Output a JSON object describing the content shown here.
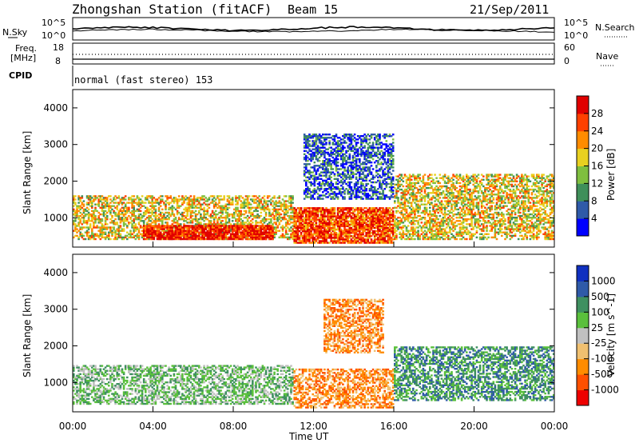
{
  "header": {
    "station": "Zhongshan Station (fitACF)",
    "beam": "Beam 15",
    "date": "21/Sep/2011"
  },
  "noise_panel": {
    "left_label": "N.Sky",
    "right_label": "N.Search",
    "left_ticks": [
      "10^5",
      "10^0"
    ],
    "right_ticks": [
      "10^5",
      "10^0"
    ]
  },
  "freq_panel": {
    "left_label_1": "Freq.",
    "left_label_2": "[MHz]",
    "right_label": "Nave",
    "left_ticks": [
      "18",
      "8"
    ],
    "right_ticks": [
      "60",
      "0"
    ]
  },
  "cpid": {
    "label": "CPID",
    "text": "normal (fast stereo) 153"
  },
  "colors": {
    "power": [
      "#0000ff",
      "#2f5aa8",
      "#3f8f5a",
      "#7fbf3f",
      "#e8d020",
      "#ff8c00",
      "#ff4000",
      "#e00000"
    ],
    "velocity": [
      "#ee0000",
      "#ff5000",
      "#ff8c00",
      "#f0c070",
      "#c0c0c0",
      "#5ac03c",
      "#3f9060",
      "#2f5aa8",
      "#1030c0"
    ]
  },
  "chart_data": [
    {
      "type": "heatmap",
      "name": "power",
      "ylabel": "Slant Range [km]",
      "yticks": [
        "4000",
        "3000",
        "2000",
        "1000"
      ],
      "ylim": [
        200,
        4500
      ],
      "xlim": [
        "00:00",
        "24:00"
      ],
      "colorbar_label": "Power [dB]",
      "colorbar_ticks": [
        "28",
        "24",
        "20",
        "16",
        "12",
        "8",
        "4"
      ],
      "colorbar_range": [
        0,
        32
      ],
      "echo_regions": [
        {
          "t": [
            0.0,
            11.0
          ],
          "range_km": [
            400,
            1600
          ],
          "dominant_db": 16
        },
        {
          "t": [
            3.5,
            10.0
          ],
          "range_km": [
            400,
            800
          ],
          "dominant_db": 28
        },
        {
          "t": [
            11.0,
            16.0
          ],
          "range_km": [
            300,
            1300
          ],
          "dominant_db": 24
        },
        {
          "t": [
            16.0,
            24.0
          ],
          "range_km": [
            400,
            2200
          ],
          "dominant_db": 16
        },
        {
          "t": [
            11.5,
            16.0
          ],
          "range_km": [
            1500,
            3300
          ],
          "dominant_db": 6
        }
      ]
    },
    {
      "type": "heatmap",
      "name": "velocity",
      "ylabel": "Slant Range [km]",
      "yticks": [
        "4000",
        "3000",
        "2000",
        "1000"
      ],
      "ylim": [
        200,
        4500
      ],
      "xlabel": "Time UT",
      "xticks": [
        "00:00",
        "04:00",
        "08:00",
        "12:00",
        "16:00",
        "20:00",
        "00:00"
      ],
      "xlim": [
        "00:00",
        "24:00"
      ],
      "colorbar_label": "Velocity [m s^-1]",
      "colorbar_ticks": [
        "1000",
        "500",
        "100",
        "25",
        "-25",
        "-100",
        "-500",
        "-1000"
      ],
      "echo_regions": [
        {
          "t": [
            0.0,
            11.0
          ],
          "range_km": [
            400,
            1500
          ],
          "dominant_ms": 100
        },
        {
          "t": [
            11.0,
            16.0
          ],
          "range_km": [
            300,
            1400
          ],
          "dominant_ms": -500
        },
        {
          "t": [
            12.5,
            15.5
          ],
          "range_km": [
            1800,
            3300
          ],
          "dominant_ms": -500
        },
        {
          "t": [
            16.0,
            24.0
          ],
          "range_km": [
            500,
            2000
          ],
          "dominant_ms": 200
        }
      ]
    }
  ]
}
